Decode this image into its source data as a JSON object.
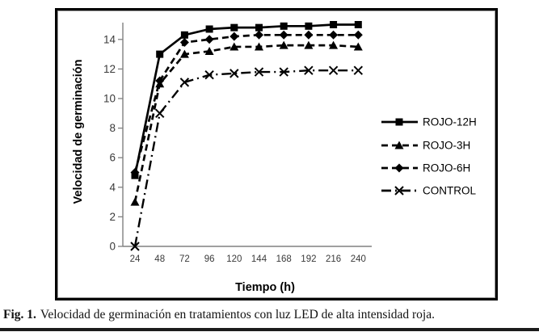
{
  "figure": {
    "caption": {
      "fig_label": "Fig. 1.",
      "text": "Velocidad de germinación en tratamientos con luz LED de alta intensidad roja."
    }
  },
  "chart_data": {
    "type": "line",
    "title": "",
    "xlabel": "Tiempo (h)",
    "ylabel": "Velocidad de germinación",
    "x": [
      24,
      48,
      72,
      96,
      120,
      144,
      168,
      192,
      216,
      240
    ],
    "xtick_labels": [
      "24",
      "48",
      "72",
      "96",
      "120",
      "144",
      "168",
      "192",
      "216",
      "240"
    ],
    "yticks": [
      0,
      2,
      4,
      6,
      8,
      10,
      12,
      14
    ],
    "ylim": [
      0,
      15.2
    ],
    "grid": false,
    "legend_position": "right-inside",
    "colors": {
      "series": "#000000",
      "axis": "#808080",
      "tick_text": "#3a3a3a"
    },
    "series": [
      {
        "name": "ROJO-12H",
        "marker": "square",
        "line": "solid",
        "values": [
          4.8,
          13.0,
          14.3,
          14.7,
          14.8,
          14.8,
          14.9,
          14.9,
          15.0,
          15.0
        ]
      },
      {
        "name": "ROJO-3H",
        "marker": "triangle",
        "line": "dashed",
        "values": [
          3.0,
          11.0,
          13.0,
          13.2,
          13.5,
          13.5,
          13.6,
          13.6,
          13.6,
          13.5
        ]
      },
      {
        "name": "ROJO-6H",
        "marker": "diamond",
        "line": "dashed",
        "values": [
          5.0,
          11.2,
          13.8,
          14.0,
          14.2,
          14.3,
          14.3,
          14.3,
          14.3,
          14.3
        ]
      },
      {
        "name": "CONTROL",
        "marker": "x",
        "line": "dash-dot",
        "values": [
          0.0,
          9.0,
          11.1,
          11.6,
          11.7,
          11.8,
          11.8,
          11.9,
          11.9,
          11.9
        ]
      }
    ]
  }
}
